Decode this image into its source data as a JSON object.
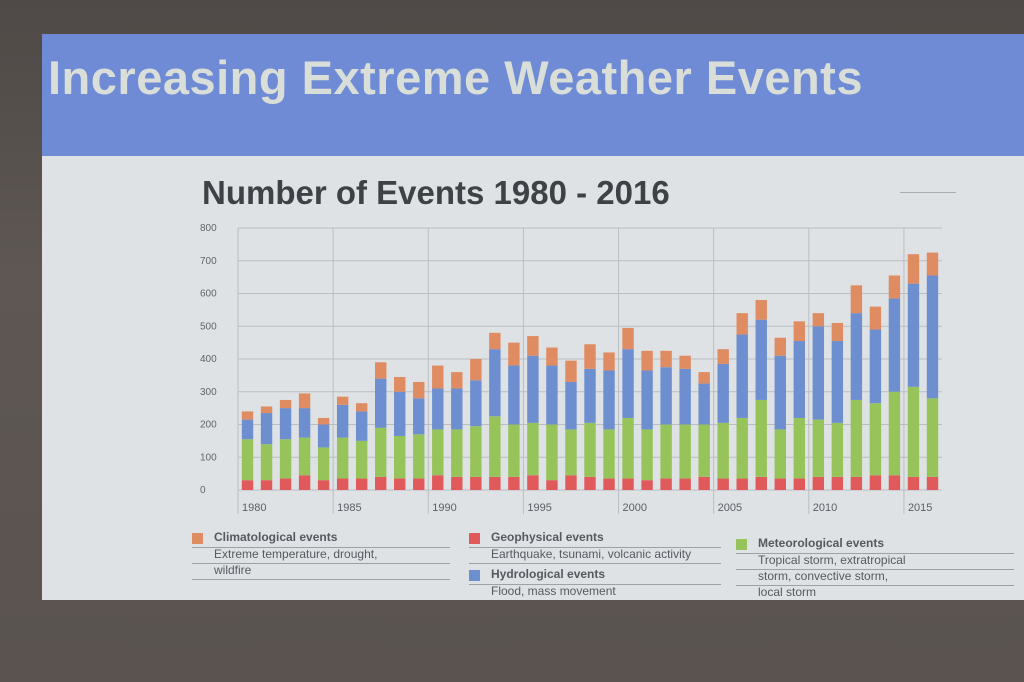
{
  "slide": {
    "title": "Increasing Extreme Weather Events"
  },
  "chart_data": {
    "type": "bar",
    "stacked": true,
    "title": "Number of Events 1980 - 2016",
    "xlabel": "",
    "ylabel": "",
    "ylim": [
      0,
      800
    ],
    "yticks": [
      "800",
      "700",
      "600",
      "500",
      "400",
      "300",
      "200",
      "100",
      "0"
    ],
    "xtick_labels": [
      "1980",
      "1985",
      "1990",
      "1995",
      "2000",
      "2005",
      "2010",
      "2015"
    ],
    "grid": true,
    "categories": [
      1980,
      1981,
      1982,
      1983,
      1984,
      1985,
      1986,
      1987,
      1988,
      1989,
      1990,
      1991,
      1992,
      1993,
      1994,
      1995,
      1996,
      1997,
      1998,
      1999,
      2000,
      2001,
      2002,
      2003,
      2004,
      2005,
      2006,
      2007,
      2008,
      2009,
      2010,
      2011,
      2012,
      2013,
      2014,
      2015,
      2016
    ],
    "series": [
      {
        "name": "Geophysical events",
        "color": "#e05a5c",
        "values": [
          30,
          30,
          35,
          45,
          30,
          35,
          35,
          40,
          35,
          35,
          45,
          40,
          40,
          40,
          40,
          45,
          30,
          45,
          40,
          35,
          35,
          30,
          35,
          35,
          40,
          35,
          35,
          40,
          35,
          35,
          40,
          40,
          40,
          45,
          45,
          40,
          40
        ]
      },
      {
        "name": "Meteorological events",
        "color": "#96c45b",
        "values": [
          125,
          110,
          120,
          115,
          100,
          125,
          115,
          150,
          130,
          135,
          140,
          145,
          155,
          185,
          160,
          160,
          170,
          140,
          165,
          150,
          185,
          155,
          165,
          165,
          160,
          170,
          185,
          235,
          150,
          185,
          175,
          165,
          235,
          220,
          255,
          275,
          240
        ]
      },
      {
        "name": "Hydrological events",
        "color": "#6d8fd0",
        "values": [
          60,
          95,
          95,
          90,
          70,
          100,
          90,
          150,
          135,
          110,
          125,
          125,
          140,
          205,
          180,
          205,
          180,
          145,
          165,
          180,
          210,
          180,
          175,
          170,
          125,
          180,
          255,
          245,
          225,
          235,
          285,
          250,
          265,
          225,
          285,
          315,
          375
        ]
      },
      {
        "name": "Climatological events",
        "color": "#e08c62",
        "values": [
          25,
          20,
          25,
          45,
          20,
          25,
          25,
          50,
          45,
          50,
          70,
          50,
          65,
          50,
          70,
          60,
          55,
          65,
          75,
          55,
          65,
          60,
          50,
          40,
          35,
          45,
          65,
          60,
          55,
          60,
          40,
          55,
          85,
          70,
          70,
          90,
          70
        ]
      }
    ],
    "legend": [
      {
        "name": "Climatological events",
        "desc": [
          "Extreme temperature, drought,",
          "wildfire"
        ]
      },
      {
        "name": "Geophysical events",
        "desc": [
          "Earthquake, tsunami, volcanic activity"
        ]
      },
      {
        "name": "Hydrological events",
        "desc": [
          "Flood, mass movement"
        ]
      },
      {
        "name": "Meteorological events",
        "desc": [
          "Tropical storm, extratropical",
          "storm, convective storm,",
          "local storm"
        ]
      }
    ],
    "legend_position": "bottom"
  }
}
